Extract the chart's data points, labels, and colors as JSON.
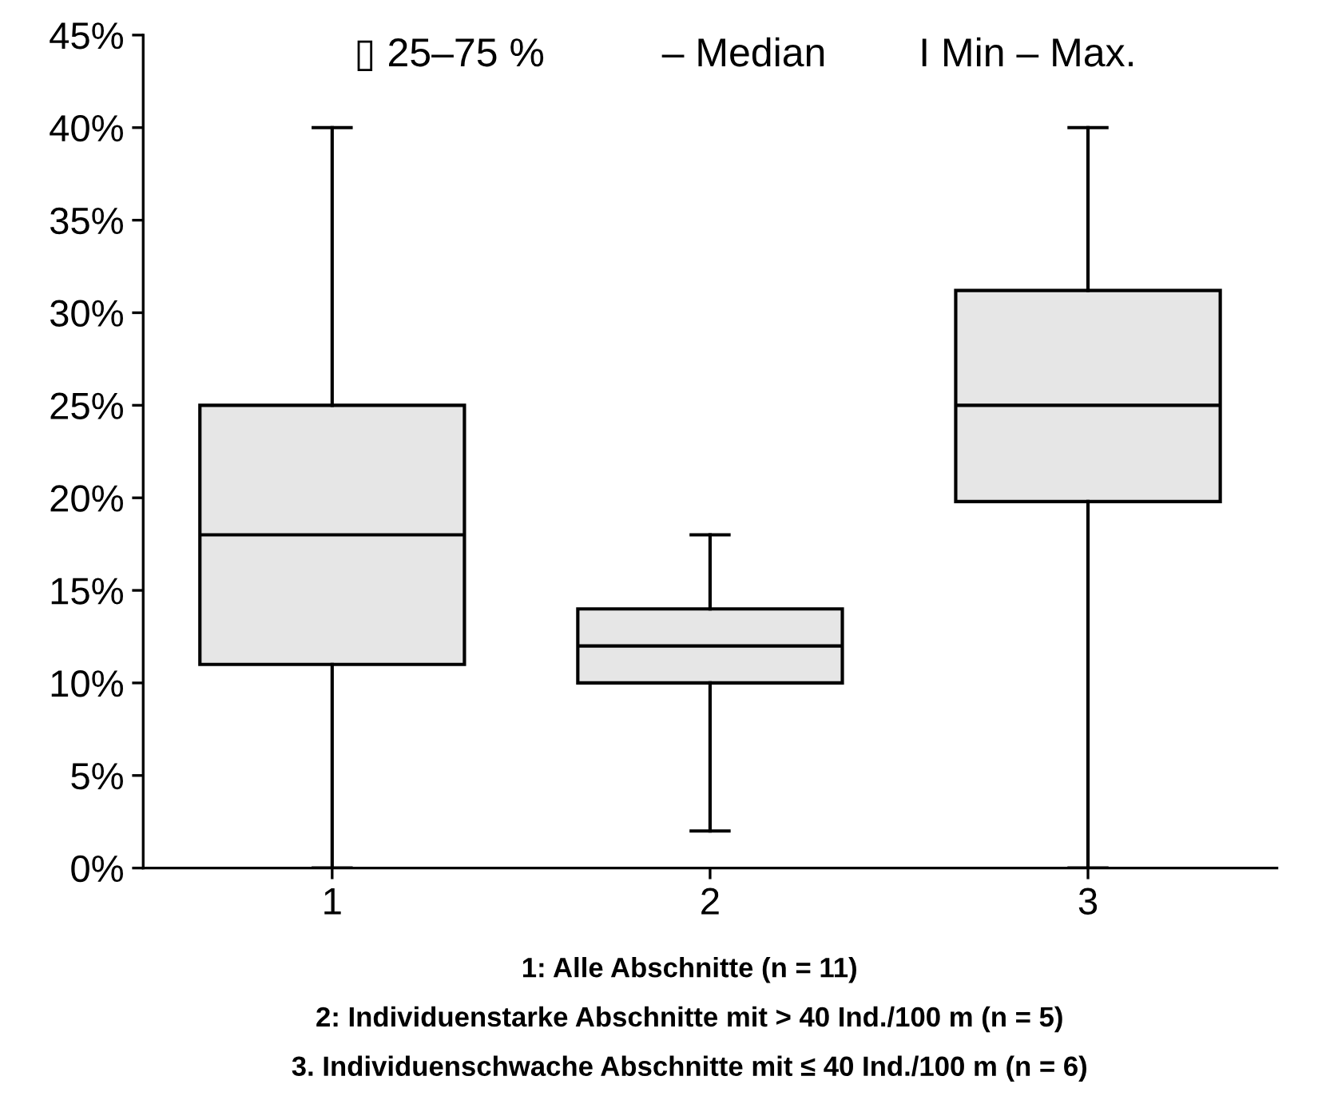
{
  "chart_data": {
    "type": "box",
    "categories": [
      "1",
      "2",
      "3"
    ],
    "series": [
      {
        "color": "#e6e6e6",
        "boxes": [
          {
            "low": 0,
            "q1": 11,
            "median": 18,
            "q3": 25,
            "high": 40
          },
          {
            "low": 2,
            "q1": 10,
            "median": 12,
            "q3": 14,
            "high": 18
          },
          {
            "low": 0,
            "q1": 19.8,
            "median": 25,
            "q3": 31.2,
            "high": 40
          }
        ]
      }
    ],
    "ylim": [
      0,
      45
    ],
    "yticks": [
      {
        "value": 0,
        "label": "0%"
      },
      {
        "value": 5,
        "label": "5%"
      },
      {
        "value": 10,
        "label": "10%"
      },
      {
        "value": 15,
        "label": "15%"
      },
      {
        "value": 20,
        "label": "20%"
      },
      {
        "value": 25,
        "label": "25%"
      },
      {
        "value": 30,
        "label": "30%"
      },
      {
        "value": 35,
        "label": "35%"
      },
      {
        "value": 40,
        "label": "40%"
      },
      {
        "value": 45,
        "label": "45%"
      }
    ],
    "grid": false,
    "annotations": [
      "▯ 25–75 %",
      "– Median",
      "I Min – Max.",
      "1: Alle Abschnitte (n = 11)",
      "2: Individuenstarke Abschnitte mit > 40 Ind./100 m (n = 5)",
      "3. Individuenschwache Abschnitte mit ≤ 40 Ind./100 m (n = 6)"
    ]
  }
}
